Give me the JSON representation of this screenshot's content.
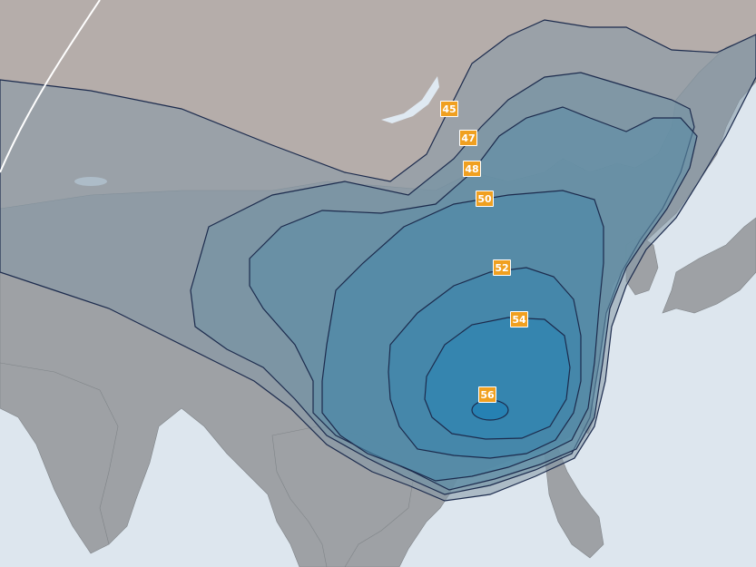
{
  "colors": {
    "ocean": "#dde6ee",
    "land": "#9ea1a5",
    "land_north": "#b5adaa",
    "contour_line": "#1c2b4d",
    "label_bg": "#f0a020",
    "label_text": "#ffffff",
    "arc": "#ffffff",
    "lake": "#dfe9f2"
  },
  "contours": [
    {
      "level": 45,
      "label": "45",
      "color": "#8497a6"
    },
    {
      "level": 47,
      "label": "47",
      "color": "#6f91a4"
    },
    {
      "level": 48,
      "label": "48",
      "color": "#5d8da6"
    },
    {
      "level": 50,
      "label": "50",
      "color": "#4a88a8"
    },
    {
      "level": 52,
      "label": "52",
      "color": "#3a86ac"
    },
    {
      "level": 54,
      "label": "54",
      "color": "#2b84b2"
    },
    {
      "level": 56,
      "label": "56",
      "color": "#1c7fb5"
    }
  ]
}
